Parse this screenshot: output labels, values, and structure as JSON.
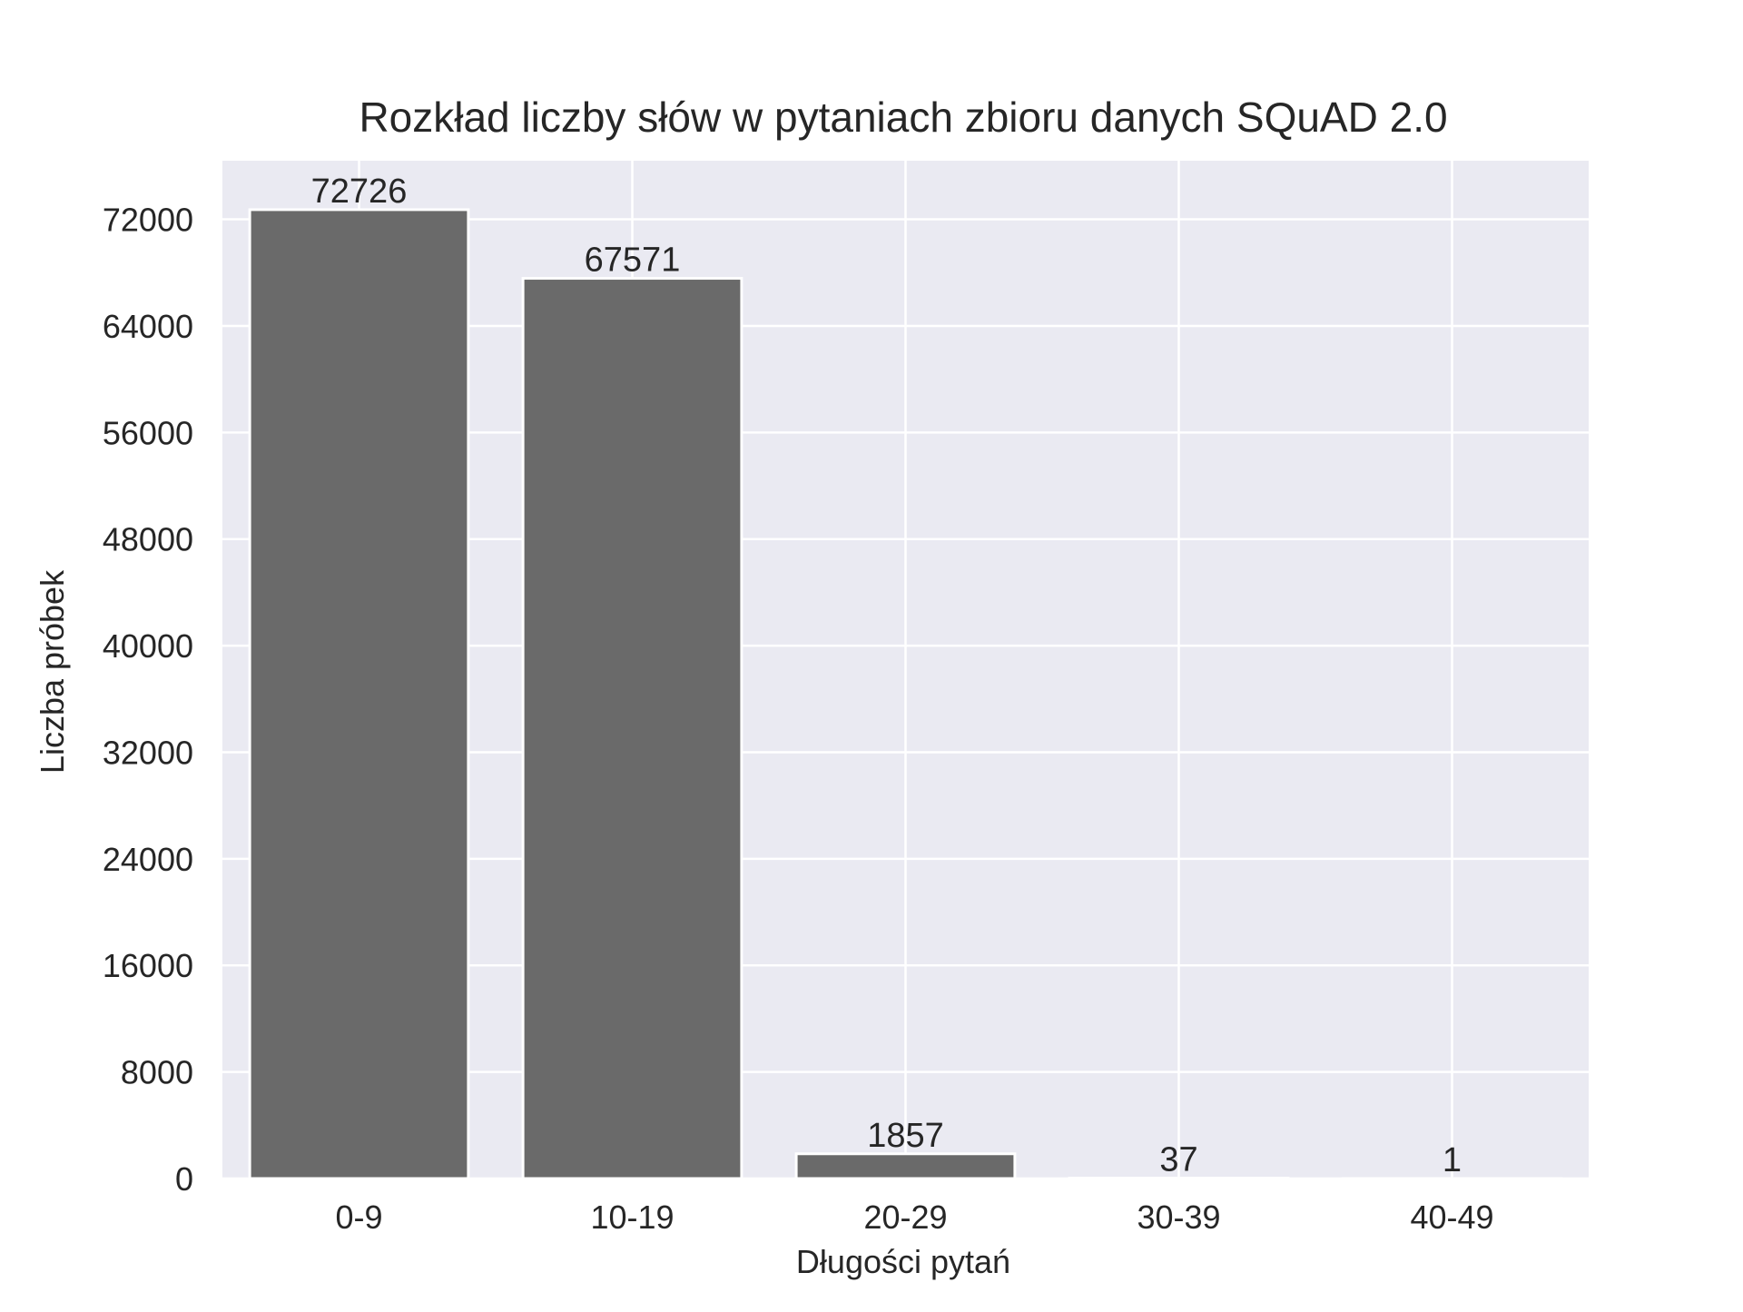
{
  "chart_data": {
    "type": "bar",
    "title": "Rozkład liczby słów w pytaniach zbioru danych SQuAD 2.0",
    "xlabel": "Długości pytań",
    "ylabel": "Liczba próbek",
    "categories": [
      "0-9",
      "10-19",
      "20-29",
      "30-39",
      "40-49"
    ],
    "values": [
      72726,
      67571,
      1857,
      37,
      1
    ],
    "data_labels": [
      "72726",
      "67571",
      "1857",
      "37",
      "1"
    ],
    "ylim": [
      0,
      76400
    ],
    "yticks": [
      0,
      8000,
      16000,
      24000,
      32000,
      40000,
      48000,
      56000,
      64000,
      72000
    ],
    "ytick_labels": [
      "0",
      "8000",
      "16000",
      "24000",
      "32000",
      "40000",
      "48000",
      "56000",
      "64000",
      "72000"
    ],
    "grid": true,
    "colors": {
      "bar": "#6a6a6a",
      "bar_edge": "#ffffff",
      "plot_background": "#eaeaf2",
      "grid": "#ffffff",
      "text": "#262626"
    }
  }
}
